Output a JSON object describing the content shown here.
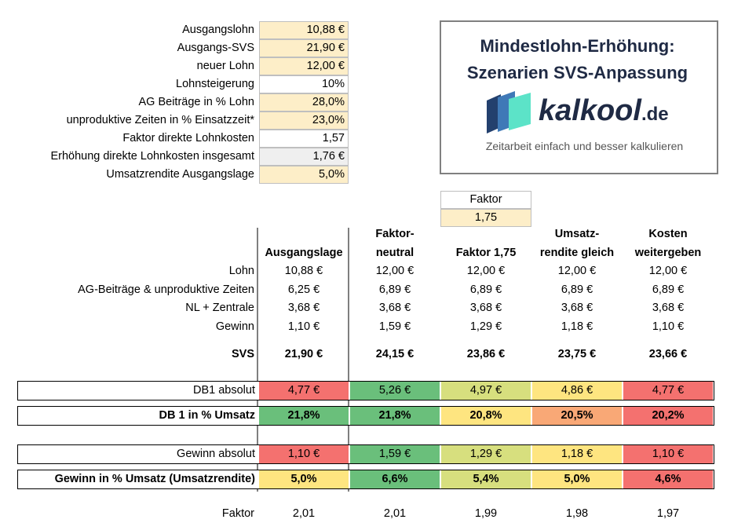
{
  "inputs": [
    {
      "label": "Ausgangslohn",
      "value": "10,88 €",
      "style": "cream"
    },
    {
      "label": "Ausgangs-SVS",
      "value": "21,90 €",
      "style": "cream"
    },
    {
      "label": "neuer Lohn",
      "value": "12,00 €",
      "style": "cream"
    },
    {
      "label": "Lohnsteigerung",
      "value": "10%",
      "style": "white"
    },
    {
      "label": "AG Beiträge in % Lohn",
      "value": "28,0%",
      "style": "cream"
    },
    {
      "label": "unproduktive Zeiten in % Einsatzzeit*",
      "value": "23,0%",
      "style": "cream"
    },
    {
      "label": "Faktor direkte Lohnkosten",
      "value": "1,57",
      "style": "white"
    },
    {
      "label": "Erhöhung direkte Lohnkosten insgesamt",
      "value": "1,76 €",
      "style": "grey"
    },
    {
      "label": "Umsatzrendite Ausgangslage",
      "value": "5,0%",
      "style": "cream"
    }
  ],
  "logo": {
    "title_line1": "Mindestlohn-Erhöhung:",
    "title_line2": "Szenarien SVS-Anpassung",
    "brand_name": "kalkool",
    "brand_tld": ".de",
    "tagline": "Zeitarbeit einfach und besser kalkulieren",
    "colors": {
      "dark_blue": "#23406e",
      "blue": "#3f79b7",
      "mint": "#5ce3c8",
      "text": "#1f2a44"
    }
  },
  "faktor_input": {
    "label": "Faktor",
    "value": "1,75"
  },
  "columns": [
    {
      "line1": "",
      "line2": "Ausgangslage"
    },
    {
      "line1": "Faktor-",
      "line2": "neutral"
    },
    {
      "line1": "",
      "line2": "Faktor 1,75"
    },
    {
      "line1": "Umsatz-",
      "line2": "rendite gleich"
    },
    {
      "line1": "Kosten",
      "line2": "weitergeben"
    }
  ],
  "rows": [
    {
      "label": "Lohn",
      "values": [
        "10,88 €",
        "12,00 €",
        "12,00 €",
        "12,00 €",
        "12,00 €"
      ]
    },
    {
      "label": "AG-Beiträge & unproduktive Zeiten",
      "values": [
        "6,25 €",
        "6,89 €",
        "6,89 €",
        "6,89 €",
        "6,89 €"
      ]
    },
    {
      "label": "NL + Zentrale",
      "values": [
        "3,68 €",
        "3,68 €",
        "3,68 €",
        "3,68 €",
        "3,68 €"
      ]
    },
    {
      "label": "Gewinn",
      "values": [
        "1,10 €",
        "1,59 €",
        "1,29 €",
        "1,18 €",
        "1,10 €"
      ]
    }
  ],
  "svs": {
    "label": "SVS",
    "values": [
      "21,90 €",
      "24,15 €",
      "23,86 €",
      "23,75 €",
      "23,66 €"
    ]
  },
  "db1_abs": {
    "label": "DB1 absolut",
    "values": [
      "4,77 €",
      "5,26 €",
      "4,97 €",
      "4,86 €",
      "4,77 €"
    ],
    "colors": [
      "#f4716f",
      "#6abf7b",
      "#d7df7e",
      "#fee580",
      "#f4716f"
    ]
  },
  "db1_pct": {
    "label": "DB 1 in % Umsatz",
    "values": [
      "21,8%",
      "21,8%",
      "20,8%",
      "20,5%",
      "20,2%"
    ],
    "colors": [
      "#6abf7b",
      "#6abf7b",
      "#fee580",
      "#f9a876",
      "#f4716f"
    ]
  },
  "gewinn_abs": {
    "label": "Gewinn absolut",
    "values": [
      "1,10 €",
      "1,59 €",
      "1,29 €",
      "1,18 €",
      "1,10 €"
    ],
    "colors": [
      "#f4716f",
      "#6abf7b",
      "#d7df7e",
      "#fee580",
      "#f4716f"
    ]
  },
  "gewinn_pct": {
    "label": "Gewinn in % Umsatz (Umsatzrendite)",
    "values": [
      "5,0%",
      "6,6%",
      "5,4%",
      "5,0%",
      "4,6%"
    ],
    "colors": [
      "#fee580",
      "#6abf7b",
      "#d7df7e",
      "#fee580",
      "#f4716f"
    ]
  },
  "faktor_row": {
    "label": "Faktor",
    "values": [
      "2,01",
      "2,01",
      "1,99",
      "1,98",
      "1,97"
    ]
  }
}
